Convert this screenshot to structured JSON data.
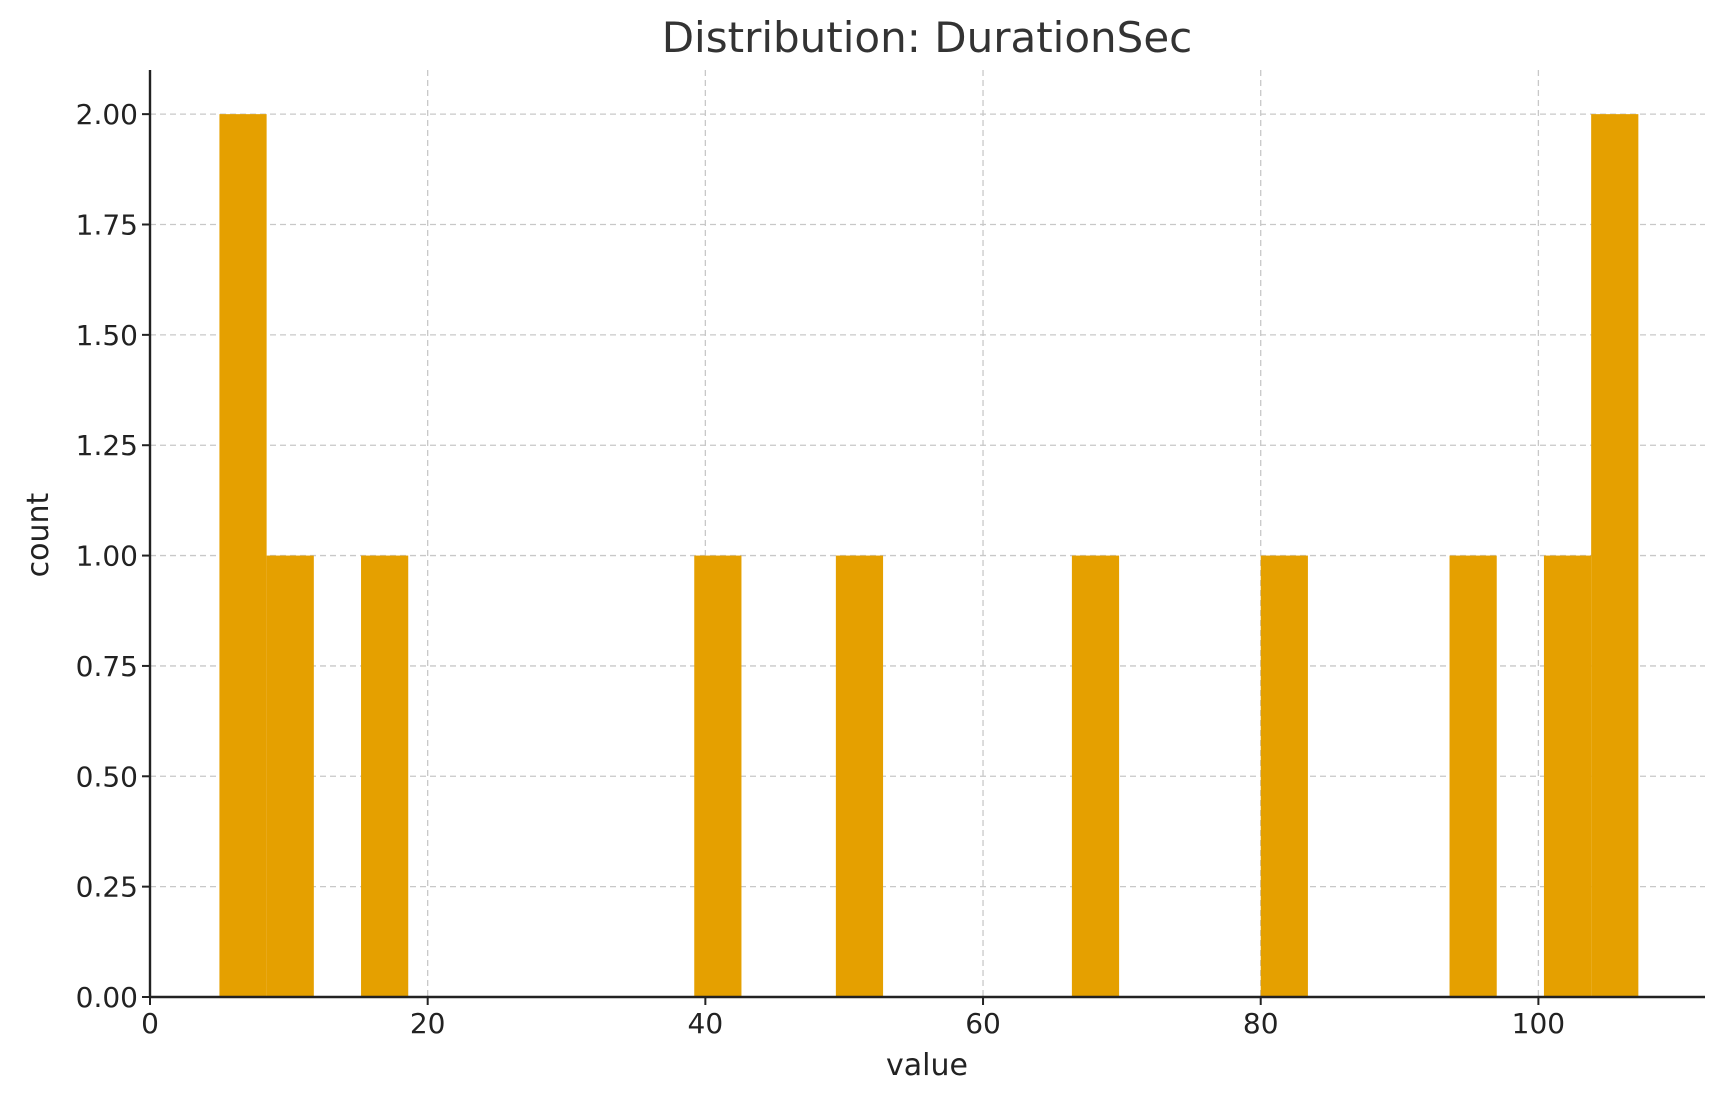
{
  "chart_data": {
    "type": "bar",
    "title": "Distribution: DurationSec",
    "xlabel": "value",
    "ylabel": "count",
    "xlim": [
      0,
      112
    ],
    "ylim": [
      0,
      2.1
    ],
    "x_ticks": [
      "0",
      "20",
      "40",
      "60",
      "80",
      "100"
    ],
    "x_tick_values": [
      0,
      20,
      40,
      60,
      80,
      100
    ],
    "y_ticks": [
      "0.00",
      "0.25",
      "0.50",
      "0.75",
      "1.00",
      "1.25",
      "1.50",
      "1.75",
      "2.00"
    ],
    "y_tick_values": [
      0,
      0.25,
      0.5,
      0.75,
      1,
      1.25,
      1.5,
      1.75,
      2
    ],
    "grid": true,
    "bar_color": "#E5A000",
    "bins": [
      {
        "start": 5.0,
        "end": 8.4,
        "count": 2
      },
      {
        "start": 8.4,
        "end": 11.8,
        "count": 1
      },
      {
        "start": 15.2,
        "end": 18.6,
        "count": 1
      },
      {
        "start": 39.2,
        "end": 42.6,
        "count": 1
      },
      {
        "start": 49.4,
        "end": 52.8,
        "count": 1
      },
      {
        "start": 66.4,
        "end": 69.8,
        "count": 1
      },
      {
        "start": 80.0,
        "end": 83.4,
        "count": 1
      },
      {
        "start": 93.6,
        "end": 97.0,
        "count": 1
      },
      {
        "start": 100.4,
        "end": 103.8,
        "count": 1
      },
      {
        "start": 103.8,
        "end": 107.2,
        "count": 2
      }
    ]
  }
}
